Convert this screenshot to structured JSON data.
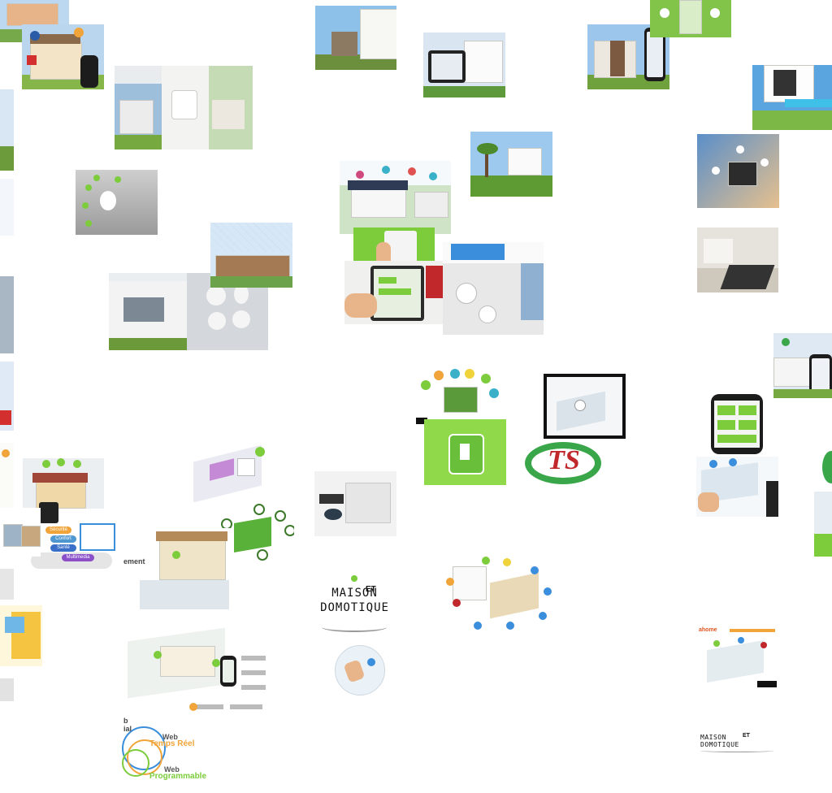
{
  "logos": {
    "maison_line1": "MAISON",
    "maison_connector": "ET",
    "maison_line2": "DOMOTIQUE",
    "ts": "TS"
  },
  "web_diagram": {
    "partial_1": "b",
    "partial_2": "ial",
    "temps_reel_1": "Web",
    "temps_reel_2": "Temps Réel",
    "programmable_1": "Web",
    "programmable_2": "Programmable"
  },
  "pill_labels": [
    "Sécurité",
    "Confort",
    "Santé",
    "Multimedia"
  ],
  "partial_caption": "ement",
  "small_caption": "ahome",
  "colors": {
    "green": "#7ccc3c",
    "lime": "#8fd94a",
    "blue": "#3a8edb",
    "orange": "#f0a43a",
    "red": "#c0282c"
  }
}
